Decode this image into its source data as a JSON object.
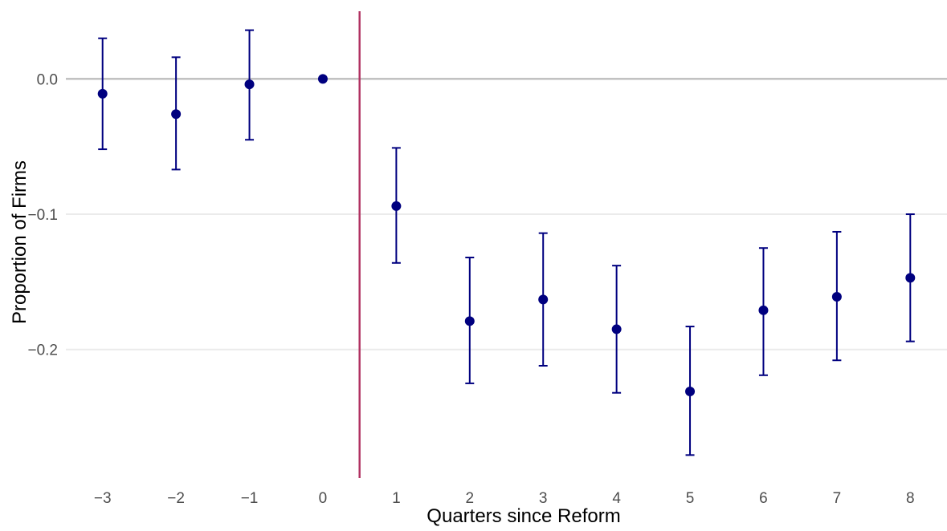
{
  "chart_data": {
    "type": "scatter",
    "title": "",
    "xlabel": "Quarters since Reform",
    "ylabel": "Proportion of Firms",
    "x_ticks": [
      -3,
      -2,
      -1,
      0,
      1,
      2,
      3,
      4,
      5,
      6,
      7,
      8
    ],
    "x_tick_labels": [
      "−3",
      "−2",
      "−1",
      "0",
      "1",
      "2",
      "3",
      "4",
      "5",
      "6",
      "7",
      "8"
    ],
    "y_ticks": [
      0.0,
      -0.1,
      -0.2
    ],
    "y_tick_labels": [
      "0.0",
      "−0.1",
      "−0.2"
    ],
    "xlim": [
      -3.5,
      8.5
    ],
    "ylim": [
      -0.295,
      0.05
    ],
    "grid": true,
    "reference_lines": {
      "horizontal_y": 0.0,
      "vertical_x": 0.5
    },
    "series": [
      {
        "points": [
          {
            "x": -3,
            "y": -0.011,
            "ci_low": -0.052,
            "ci_high": 0.03
          },
          {
            "x": -2,
            "y": -0.026,
            "ci_low": -0.067,
            "ci_high": 0.016
          },
          {
            "x": -1,
            "y": -0.004,
            "ci_low": -0.045,
            "ci_high": 0.036
          },
          {
            "x": 0,
            "y": 0.0,
            "ci_low": 0.0,
            "ci_high": 0.0
          },
          {
            "x": 1,
            "y": -0.094,
            "ci_low": -0.136,
            "ci_high": -0.051
          },
          {
            "x": 2,
            "y": -0.179,
            "ci_low": -0.225,
            "ci_high": -0.132
          },
          {
            "x": 3,
            "y": -0.163,
            "ci_low": -0.212,
            "ci_high": -0.114
          },
          {
            "x": 4,
            "y": -0.185,
            "ci_low": -0.232,
            "ci_high": -0.138
          },
          {
            "x": 5,
            "y": -0.231,
            "ci_low": -0.278,
            "ci_high": -0.183
          },
          {
            "x": 6,
            "y": -0.171,
            "ci_low": -0.219,
            "ci_high": -0.125
          },
          {
            "x": 7,
            "y": -0.161,
            "ci_low": -0.208,
            "ci_high": -0.113
          },
          {
            "x": 8,
            "y": -0.147,
            "ci_low": -0.194,
            "ci_high": -0.1
          }
        ]
      }
    ],
    "colors": {
      "points": "#00007f",
      "error_bars": "#00007f",
      "zero_line": "#bdbdbd",
      "gridline": "#ebebeb",
      "vertical_line": "#b03060"
    }
  }
}
